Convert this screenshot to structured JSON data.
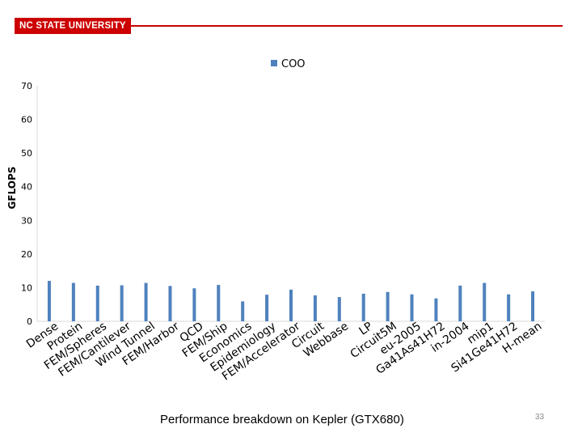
{
  "header": {
    "logo_text": "NC STATE UNIVERSITY"
  },
  "caption": "Performance breakdown on Kepler (GTX680)",
  "page_number": "33",
  "colors": {
    "bar": "#4f81bd",
    "brand": "#cc0000",
    "axis": "#d9d9d9"
  },
  "chart_data": {
    "type": "bar",
    "ylabel": "GFLOPS",
    "xlabel": "",
    "ylim": [
      0,
      70
    ],
    "yticks": [
      0,
      10,
      20,
      30,
      40,
      50,
      60,
      70
    ],
    "grid": false,
    "legend_position": "top-center",
    "categories": [
      "Dense",
      "Protein",
      "FEM/Spheres",
      "FEM/Cantilever",
      "Wind Tunnel",
      "FEM/Harbor",
      "QCD",
      "FEM/Ship",
      "Economics",
      "Epidemiology",
      "FEM/Accelerator",
      "Circuit",
      "Webbase",
      "LP",
      "Circuit5M",
      "eu-2005",
      "Ga41As41H72",
      "in-2004",
      "mip1",
      "Si41Ge41H72",
      "H-mean"
    ],
    "series": [
      {
        "name": "COO",
        "values": [
          12,
          11.4,
          10.6,
          10.7,
          11.4,
          10.5,
          9.8,
          10.8,
          5.9,
          7.9,
          9.4,
          7.7,
          7.2,
          8.2,
          8.7,
          8,
          6.8,
          10.6,
          11.4,
          8,
          8.9
        ]
      }
    ]
  }
}
